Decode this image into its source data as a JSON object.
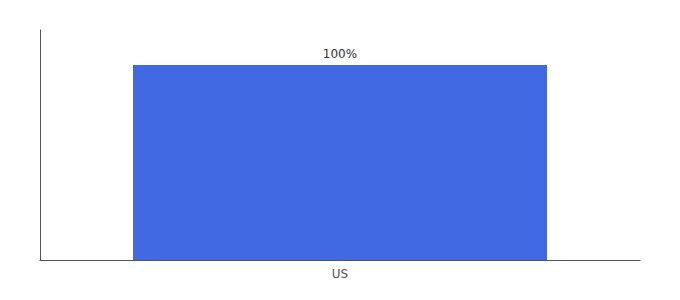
{
  "chart_data": {
    "type": "bar",
    "categories": [
      "US"
    ],
    "values": [
      100
    ],
    "value_labels": [
      "100%"
    ],
    "data_labels": true,
    "color": "#4169E1",
    "ylim": [
      0,
      118
    ],
    "grid": false,
    "tick_labels": "x"
  }
}
